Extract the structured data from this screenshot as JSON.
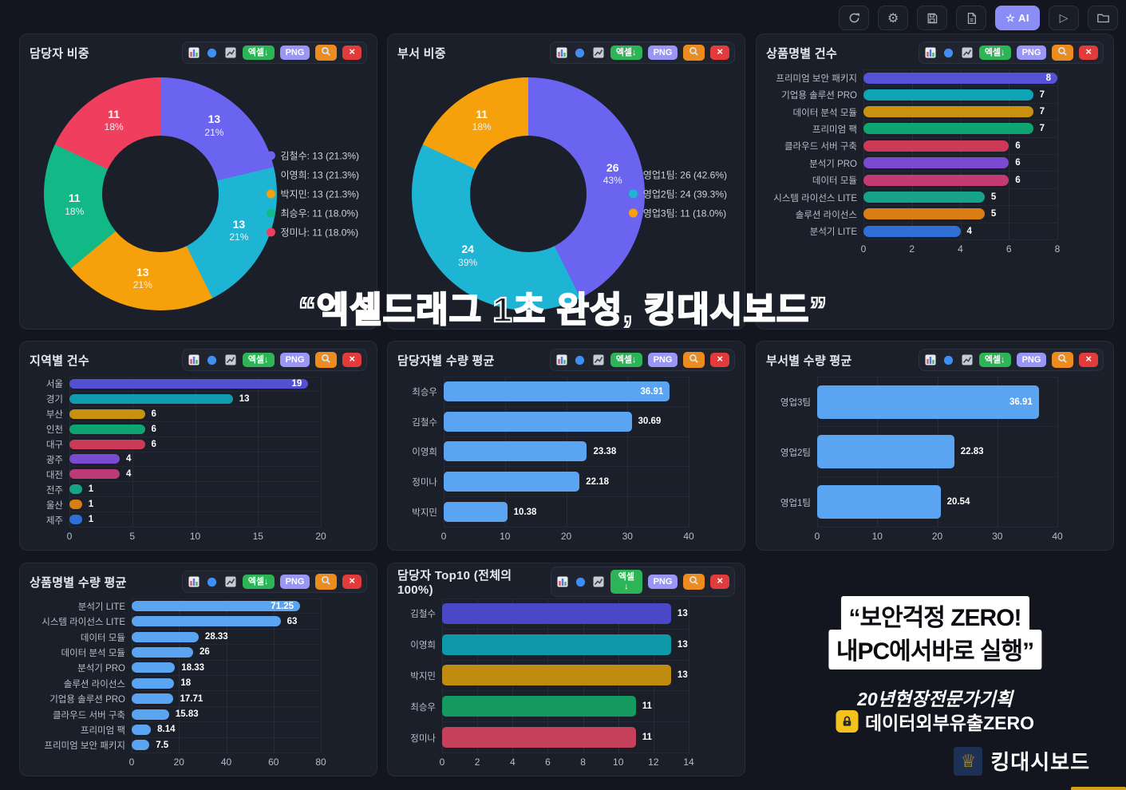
{
  "toolbar": {
    "ai_label": "☆ AI"
  },
  "panel_buttons": {
    "excel": "엑셀↓",
    "png": "PNG",
    "close": "×"
  },
  "watermark": "“엑셀드래그 1초 완성, 킹대시보드”",
  "promo": {
    "headline1": "“보안걱정 ZERO!",
    "headline2": "내PC에서바로 실행”",
    "sub1": "20년현장전문가기획",
    "sub2": "데이터외부유출ZERO",
    "brand": "킹대시보드",
    "lock_icon": "lock-icon",
    "brand_icon": "crown-shield-icon",
    "crown_glyph": "♕"
  },
  "colors": {
    "page_bg": "#13161e",
    "panel_bg": "#1b1f29",
    "excel_green": "#2db457",
    "png_purple": "#9a96f5",
    "zoom_orange": "#ec8b1e",
    "close_red": "#e13b3b",
    "ai_purple": "#8b8df7",
    "light_blue_bar": "#5ba4f2"
  },
  "chart_data": [
    {
      "type": "pie",
      "title": "담당자 비중",
      "donut": true,
      "labels": [
        "김철수",
        "이영희",
        "박지민",
        "최승우",
        "정미나"
      ],
      "values": [
        13,
        13,
        13,
        11,
        11
      ],
      "percent_labels": [
        "21.3%",
        "21.3%",
        "21.3%",
        "18.0%",
        "18.0%"
      ],
      "slice_value_labels": [
        "13",
        "13",
        "13",
        "11",
        "11"
      ],
      "slice_pct_labels": [
        "21%",
        "21%",
        "21%",
        "18%",
        "18%"
      ],
      "colors": [
        "#6b64f0",
        "#1db5d3",
        "#f6a00b",
        "#12b886",
        "#f03e5e"
      ],
      "legend": [
        "김철수: 13 (21.3%)",
        "이영희: 13 (21.3%)",
        "박지민: 13 (21.3%)",
        "최승우: 11 (18.0%)",
        "정미나: 11 (18.0%)"
      ],
      "legend_position": "right"
    },
    {
      "type": "pie",
      "title": "부서 비중",
      "donut": true,
      "labels": [
        "영업1팀",
        "영업2팀",
        "영업3팀"
      ],
      "values": [
        26,
        24,
        11
      ],
      "percent_labels": [
        "42.6%",
        "39.3%",
        "18.0%"
      ],
      "slice_value_labels": [
        "26",
        "24",
        "11"
      ],
      "slice_pct_labels": [
        "43%",
        "39%",
        "18%"
      ],
      "colors": [
        "#6b64f0",
        "#1db5d3",
        "#f6a00b"
      ],
      "legend": [
        "영업1팀: 26 (42.6%)",
        "영업2팀: 24 (39.3%)",
        "영업3팀: 11 (18.0%)"
      ],
      "legend_position": "right"
    },
    {
      "type": "bar",
      "title": "상품명별 건수",
      "orientation": "horizontal",
      "categories": [
        "프리미엄 보안 패키지",
        "기업용 솔루션 PRO",
        "데이터 분석 모듈",
        "프리미엄 팩",
        "클라우드 서버 구축",
        "분석기 PRO",
        "데이터 모듈",
        "시스템 라이선스 LITE",
        "솔루션 라이선스",
        "분석기 LITE"
      ],
      "values": [
        8,
        7,
        7,
        7,
        6,
        6,
        6,
        5,
        5,
        4
      ],
      "value_labels": [
        "8",
        "7",
        "7",
        "7",
        "6",
        "6",
        "6",
        "5",
        "5",
        "4"
      ],
      "colors": [
        "#5552d8",
        "#0ea3b5",
        "#c8920e",
        "#0fa573",
        "#cc3a57",
        "#7a4bd1",
        "#c43a72",
        "#17a389",
        "#d97e15",
        "#2e70d6"
      ],
      "xticks": [
        "0",
        "2",
        "4",
        "6",
        "8"
      ],
      "xtick_values": [
        0,
        2,
        4,
        6,
        8
      ],
      "xmax": 8,
      "label_inside": [
        true,
        false,
        false,
        false,
        false,
        false,
        false,
        false,
        false,
        false
      ],
      "grid": true
    },
    {
      "type": "bar",
      "title": "지역별 건수",
      "orientation": "horizontal",
      "categories": [
        "서울",
        "경기",
        "부산",
        "인천",
        "대구",
        "광주",
        "대전",
        "전주",
        "울산",
        "제주"
      ],
      "values": [
        19,
        13,
        6,
        6,
        6,
        4,
        4,
        1,
        1,
        1
      ],
      "value_labels": [
        "19",
        "13",
        "6",
        "6",
        "6",
        "4",
        "4",
        "1",
        "1",
        "1"
      ],
      "colors": [
        "#5450d2",
        "#0f9cb0",
        "#c8920e",
        "#0fa573",
        "#cc3a57",
        "#7a4bd1",
        "#bb3a78",
        "#17a389",
        "#d97e15",
        "#2e70d6"
      ],
      "xticks": [
        "0",
        "5",
        "10",
        "15",
        "20"
      ],
      "xtick_values": [
        0,
        5,
        10,
        15,
        20
      ],
      "xmax": 20,
      "label_inside": [
        true,
        false,
        false,
        false,
        false,
        false,
        false,
        false,
        false,
        false
      ],
      "grid": true
    },
    {
      "type": "bar",
      "title": "담당자별 수량 평균",
      "orientation": "horizontal",
      "categories": [
        "최승우",
        "김철수",
        "이영희",
        "정미나",
        "박지민"
      ],
      "values": [
        36.91,
        30.69,
        23.38,
        22.18,
        10.38
      ],
      "value_labels": [
        "36.91",
        "30.69",
        "23.38",
        "22.18",
        "10.38"
      ],
      "colors": [
        "#5ba4f2",
        "#5ba4f2",
        "#5ba4f2",
        "#5ba4f2",
        "#5ba4f2"
      ],
      "xticks": [
        "0",
        "10",
        "20",
        "30",
        "40"
      ],
      "xtick_values": [
        0,
        10,
        20,
        30,
        40
      ],
      "xmax": 40,
      "label_inside": [
        true,
        false,
        false,
        false,
        false
      ],
      "grid": true
    },
    {
      "type": "bar",
      "title": "부서별 수량 평균",
      "orientation": "horizontal",
      "categories": [
        "영업3팀",
        "영업2팀",
        "영업1팀"
      ],
      "values": [
        36.91,
        22.83,
        20.54
      ],
      "value_labels": [
        "36.91",
        "22.83",
        "20.54"
      ],
      "colors": [
        "#5ba4f2",
        "#5ba4f2",
        "#5ba4f2"
      ],
      "xticks": [
        "0",
        "10",
        "20",
        "30",
        "40"
      ],
      "xtick_values": [
        0,
        10,
        20,
        30,
        40
      ],
      "xmax": 40,
      "label_inside": [
        true,
        false,
        false
      ],
      "grid": true
    },
    {
      "type": "bar",
      "title": "상품명별 수량 평균",
      "orientation": "horizontal",
      "categories": [
        "분석기 LITE",
        "시스템 라이선스 LITE",
        "데이터 모듈",
        "데이터 분석 모듈",
        "분석기 PRO",
        "솔루션 라이선스",
        "기업용 솔루션 PRO",
        "클라우드 서버 구축",
        "프리미엄 팩",
        "프리미엄 보안 패키지"
      ],
      "values": [
        71.25,
        63,
        28.33,
        26,
        18.33,
        18,
        17.71,
        15.83,
        8.14,
        7.5
      ],
      "value_labels": [
        "71.25",
        "63",
        "28.33",
        "26",
        "18.33",
        "18",
        "17.71",
        "15.83",
        "8.14",
        "7.5"
      ],
      "colors": [
        "#5ba4f2",
        "#5ba4f2",
        "#5ba4f2",
        "#5ba4f2",
        "#5ba4f2",
        "#5ba4f2",
        "#5ba4f2",
        "#5ba4f2",
        "#5ba4f2",
        "#5ba4f2"
      ],
      "xticks": [
        "0",
        "20",
        "40",
        "60",
        "80"
      ],
      "xtick_values": [
        0,
        20,
        40,
        60,
        80
      ],
      "xmax": 80,
      "label_inside": [
        true,
        false,
        false,
        false,
        false,
        false,
        false,
        false,
        false,
        false
      ],
      "grid": true
    },
    {
      "type": "bar",
      "title": "담당자 Top10 (전체의 100%)",
      "orientation": "horizontal",
      "categories": [
        "김철수",
        "이영희",
        "박지민",
        "최승우",
        "정미나"
      ],
      "values": [
        13,
        13,
        13,
        11,
        11
      ],
      "value_labels": [
        "13",
        "13",
        "13",
        "11",
        "11"
      ],
      "colors": [
        "#4b48c8",
        "#0e98a8",
        "#bf8c10",
        "#149a5e",
        "#c5405a"
      ],
      "xticks": [
        "0",
        "2",
        "4",
        "6",
        "8",
        "10",
        "12",
        "14"
      ],
      "xtick_values": [
        0,
        2,
        4,
        6,
        8,
        10,
        12,
        14
      ],
      "xmax": 14,
      "label_inside": [
        false,
        false,
        false,
        false,
        false
      ],
      "grid": true
    }
  ]
}
